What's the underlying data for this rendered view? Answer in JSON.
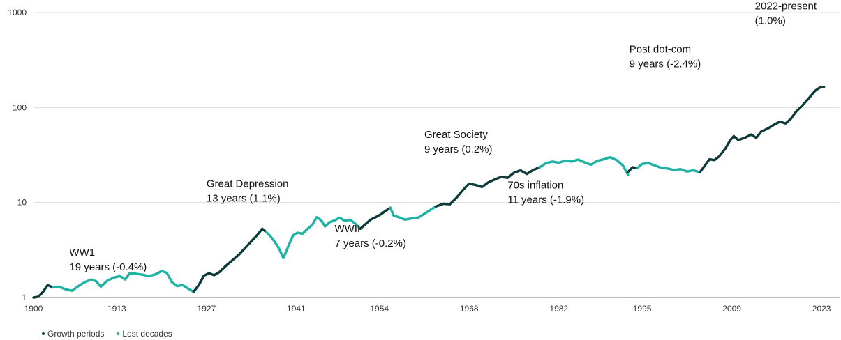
{
  "chart_data": {
    "type": "line",
    "title": "",
    "xlabel": "",
    "ylabel": "",
    "y_scale": "log",
    "ylim": [
      1,
      1000
    ],
    "xlim": [
      1900,
      2025.8
    ],
    "grid": true,
    "y_ticks": [
      {
        "value": 1,
        "label": "1"
      },
      {
        "value": 10,
        "label": "10"
      },
      {
        "value": 100,
        "label": "100"
      },
      {
        "value": 1000,
        "label": "1000"
      }
    ],
    "x_ticks": [
      {
        "value": 1900,
        "label": "1900"
      },
      {
        "value": 1913,
        "label": "1913"
      },
      {
        "value": 1927,
        "label": "1927"
      },
      {
        "value": 1941,
        "label": "1941"
      },
      {
        "value": 1954,
        "label": "1954"
      },
      {
        "value": 1968,
        "label": "1968"
      },
      {
        "value": 1982,
        "label": "1982"
      },
      {
        "value": 1995,
        "label": "1995"
      },
      {
        "value": 2009,
        "label": "2009"
      },
      {
        "value": 2023,
        "label": "2023"
      }
    ],
    "legend_position": "bottom-left",
    "legend": [
      {
        "key": "growth",
        "label": "Growth periods",
        "color": "#0d3b3a"
      },
      {
        "key": "lost",
        "label": "Lost decades",
        "color": "#1fb3a3"
      }
    ],
    "series": [
      {
        "name": "Growth periods",
        "key": "growth",
        "segment": 1,
        "points": [
          [
            1900,
            1.0
          ],
          [
            1900.8,
            1.02
          ],
          [
            1901.5,
            1.15
          ],
          [
            1902.2,
            1.35
          ],
          [
            1903,
            1.28
          ]
        ]
      },
      {
        "name": "Lost decades",
        "key": "lost",
        "segment": 1,
        "points": [
          [
            1903,
            1.28
          ],
          [
            1904,
            1.3
          ],
          [
            1905,
            1.22
          ],
          [
            1906,
            1.18
          ],
          [
            1907,
            1.32
          ],
          [
            1908,
            1.45
          ],
          [
            1909,
            1.55
          ],
          [
            1909.8,
            1.48
          ],
          [
            1910.5,
            1.3
          ],
          [
            1911.5,
            1.5
          ],
          [
            1912.5,
            1.62
          ],
          [
            1913.5,
            1.68
          ],
          [
            1914.3,
            1.55
          ],
          [
            1915,
            1.8
          ],
          [
            1916,
            1.78
          ],
          [
            1917,
            1.74
          ],
          [
            1918,
            1.68
          ],
          [
            1919,
            1.75
          ],
          [
            1920,
            1.9
          ],
          [
            1920.8,
            1.82
          ],
          [
            1921.6,
            1.45
          ],
          [
            1922.4,
            1.32
          ],
          [
            1923.3,
            1.35
          ],
          [
            1924.3,
            1.22
          ],
          [
            1925,
            1.15
          ]
        ]
      },
      {
        "name": "Growth periods",
        "key": "growth",
        "segment": 2,
        "points": [
          [
            1925,
            1.15
          ],
          [
            1925.8,
            1.35
          ],
          [
            1926.6,
            1.7
          ],
          [
            1927.4,
            1.8
          ],
          [
            1928.2,
            1.72
          ],
          [
            1929,
            1.85
          ],
          [
            1930,
            2.15
          ],
          [
            1931,
            2.45
          ],
          [
            1932,
            2.8
          ],
          [
            1933,
            3.3
          ],
          [
            1934,
            3.9
          ],
          [
            1935,
            4.6
          ],
          [
            1935.7,
            5.3
          ],
          [
            1936.3,
            4.9
          ]
        ]
      },
      {
        "name": "Lost decades",
        "key": "lost",
        "segment": 2,
        "points": [
          [
            1936.3,
            4.9
          ],
          [
            1937,
            4.4
          ],
          [
            1937.6,
            3.9
          ],
          [
            1938.3,
            3.3
          ],
          [
            1939,
            2.6
          ],
          [
            1939.8,
            3.5
          ],
          [
            1940.5,
            4.5
          ],
          [
            1941.2,
            4.8
          ],
          [
            1942,
            4.7
          ],
          [
            1942.8,
            5.3
          ],
          [
            1943.5,
            5.8
          ],
          [
            1944.2,
            7.0
          ],
          [
            1944.9,
            6.5
          ],
          [
            1945.5,
            5.6
          ],
          [
            1946.2,
            6.2
          ],
          [
            1947,
            6.5
          ],
          [
            1947.8,
            6.9
          ],
          [
            1948.6,
            6.4
          ],
          [
            1949.4,
            6.6
          ],
          [
            1950.2,
            6.0
          ],
          [
            1951,
            5.3
          ]
        ]
      },
      {
        "name": "Growth periods",
        "key": "growth",
        "segment": 3,
        "points": [
          [
            1951,
            5.3
          ],
          [
            1951.8,
            5.9
          ],
          [
            1952.6,
            6.6
          ],
          [
            1953.4,
            7.0
          ],
          [
            1954.2,
            7.5
          ],
          [
            1955,
            8.2
          ],
          [
            1955.7,
            8.8
          ]
        ]
      },
      {
        "name": "Lost decades",
        "key": "lost",
        "segment": 3,
        "points": [
          [
            1955.7,
            8.8
          ],
          [
            1956.2,
            7.3
          ],
          [
            1957,
            7.0
          ],
          [
            1958,
            6.6
          ],
          [
            1959,
            6.8
          ],
          [
            1960,
            6.9
          ],
          [
            1961,
            7.6
          ],
          [
            1962,
            8.4
          ],
          [
            1962.8,
            9.1
          ]
        ]
      },
      {
        "name": "Growth periods",
        "key": "growth",
        "segment": 4,
        "points": [
          [
            1962.8,
            9.1
          ],
          [
            1964,
            9.7
          ],
          [
            1965,
            9.6
          ],
          [
            1966,
            11.2
          ],
          [
            1967,
            13.5
          ],
          [
            1968,
            15.8
          ],
          [
            1969,
            15.3
          ],
          [
            1970,
            14.6
          ],
          [
            1971,
            16.3
          ],
          [
            1972,
            17.5
          ],
          [
            1973,
            18.6
          ],
          [
            1974,
            18.2
          ],
          [
            1975,
            20.6
          ],
          [
            1976,
            21.8
          ],
          [
            1977,
            20.0
          ],
          [
            1978,
            22.0
          ],
          [
            1979,
            23.5
          ]
        ]
      },
      {
        "name": "Lost decades",
        "key": "lost",
        "segment": 4,
        "points": [
          [
            1979,
            23.5
          ],
          [
            1980,
            26.0
          ],
          [
            1981,
            27.0
          ],
          [
            1982,
            26.2
          ],
          [
            1983,
            27.6
          ],
          [
            1984,
            27.0
          ],
          [
            1985,
            28.3
          ],
          [
            1986,
            26.5
          ],
          [
            1987,
            25.0
          ],
          [
            1988,
            27.5
          ],
          [
            1989,
            28.5
          ],
          [
            1990,
            30.0
          ],
          [
            1991,
            28.0
          ],
          [
            1992,
            24.5
          ],
          [
            1992.8,
            19.5
          ]
        ]
      },
      {
        "name": "Growth periods",
        "key": "growth",
        "segment": 5,
        "points": [
          [
            1992.8,
            21.0
          ],
          [
            1993.5,
            23.5
          ],
          [
            1994.2,
            23.0
          ]
        ]
      },
      {
        "name": "Lost decades",
        "key": "lost",
        "segment": 5,
        "points": [
          [
            1994.2,
            23.0
          ],
          [
            1995,
            25.5
          ],
          [
            1996,
            26.0
          ],
          [
            1997,
            24.5
          ],
          [
            1998,
            23.2
          ],
          [
            1999,
            22.8
          ],
          [
            2000,
            22.0
          ],
          [
            2001,
            22.5
          ],
          [
            2002,
            21.2
          ],
          [
            2003,
            21.8
          ],
          [
            2004,
            20.8
          ]
        ]
      },
      {
        "name": "Growth periods",
        "key": "growth",
        "segment": 6,
        "points": [
          [
            2004,
            20.8
          ],
          [
            2004.7,
            24.0
          ],
          [
            2005.5,
            28.5
          ],
          [
            2006.3,
            28.0
          ],
          [
            2007,
            30.5
          ],
          [
            2008,
            37.0
          ],
          [
            2008.7,
            45.0
          ],
          [
            2009.3,
            50.0
          ],
          [
            2010,
            45.5
          ],
          [
            2011,
            48.0
          ],
          [
            2012,
            52.0
          ],
          [
            2012.8,
            48.0
          ],
          [
            2013.6,
            56.0
          ],
          [
            2014.6,
            60.0
          ],
          [
            2015.6,
            66.0
          ],
          [
            2016.5,
            71.0
          ],
          [
            2017.4,
            68.0
          ],
          [
            2018.2,
            76.0
          ],
          [
            2019,
            90.0
          ],
          [
            2020,
            105.0
          ],
          [
            2021,
            125.0
          ],
          [
            2022,
            150.0
          ],
          [
            2022.7,
            162.0
          ],
          [
            2023.4,
            165.0
          ]
        ]
      },
      {
        "name": "Lost decades",
        "key": "lost",
        "segment": 6,
        "points": [
          [
            2023.4,
            165.0
          ]
        ]
      }
    ],
    "annotations": [
      {
        "title": "WW1",
        "subtitle": "19 years (-0.4%)",
        "x": 1905.6,
        "y_value": 2.75
      },
      {
        "title": "Great Depression",
        "subtitle": "13 years (1.1%)",
        "x": 1927.0,
        "y_value": 14.5
      },
      {
        "title": "WWII",
        "subtitle": "7 years (-0.2%)",
        "x": 1947.0,
        "y_value": 4.9
      },
      {
        "title": "Great Society",
        "subtitle": "9 years (0.2%)",
        "x": 1961.0,
        "y_value": 48.0
      },
      {
        "title": "70s inflation",
        "subtitle": "11 years (-1.9%)",
        "x": 1974.0,
        "y_value": 14.0
      },
      {
        "title": "Post dot-com",
        "subtitle": "9 years (-2.4%)",
        "x": 1993.0,
        "y_value": 380.0
      },
      {
        "title": "2022-present",
        "subtitle": "(1.0%)",
        "x": 2012.6,
        "y_value": 1080.0
      }
    ]
  }
}
